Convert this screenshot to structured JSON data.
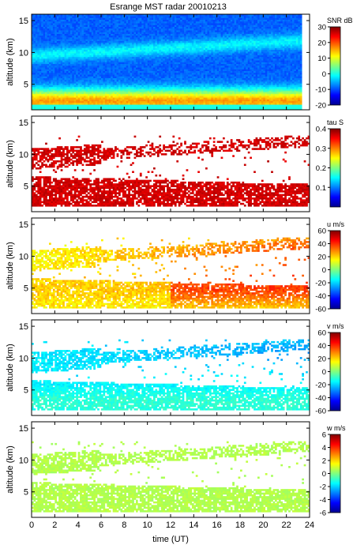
{
  "title": "Esrange MST radar 20010213",
  "chart_data": {
    "type": "heatmap",
    "title": "Esrange MST radar 20010213",
    "xlabel": "time (UT)",
    "x_ticks": [
      0,
      2,
      4,
      6,
      8,
      10,
      12,
      14,
      16,
      18,
      20,
      22,
      24
    ],
    "xlim": [
      0,
      24
    ],
    "panels": [
      {
        "id": "snr",
        "ylabel": "altitude (km)",
        "ylim": [
          1,
          16
        ],
        "y_ticks": [
          5,
          10,
          15
        ],
        "colorbar": {
          "label": "SNR dB",
          "range": [
            -20,
            30
          ],
          "ticks": [
            -20,
            -10,
            0,
            10,
            20,
            30
          ]
        }
      },
      {
        "id": "tau",
        "ylabel": "altitude (km)",
        "ylim": [
          1,
          16
        ],
        "y_ticks": [
          5,
          10,
          15
        ],
        "colorbar": {
          "label": "tau S",
          "range": [
            0,
            0.4
          ],
          "ticks": [
            0.1,
            0.2,
            0.3,
            0.4
          ]
        }
      },
      {
        "id": "u",
        "ylabel": "altitude (km)",
        "ylim": [
          1,
          16
        ],
        "y_ticks": [
          5,
          10,
          15
        ],
        "colorbar": {
          "label": "u m/s",
          "range": [
            -60,
            60
          ],
          "ticks": [
            -60,
            -40,
            -20,
            0,
            20,
            40,
            60
          ]
        }
      },
      {
        "id": "v",
        "ylabel": "altitude (km)",
        "ylim": [
          1,
          16
        ],
        "y_ticks": [
          5,
          10,
          15
        ],
        "colorbar": {
          "label": "v m/s",
          "range": [
            -60,
            60
          ],
          "ticks": [
            -60,
            -40,
            -20,
            0,
            20,
            40,
            60
          ]
        }
      },
      {
        "id": "w",
        "ylabel": "altitude (km)",
        "ylim": [
          1,
          16
        ],
        "y_ticks": [
          5,
          10,
          15
        ],
        "colorbar": {
          "label": "w m/s",
          "range": [
            -6,
            6
          ],
          "ticks": [
            -6,
            -4,
            -2,
            0,
            2,
            4,
            6
          ]
        }
      }
    ]
  }
}
